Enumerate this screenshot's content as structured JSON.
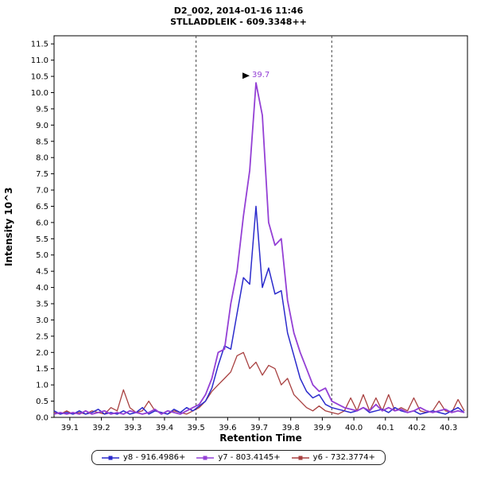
{
  "header": {
    "line1": "D2_002, 2014-01-16 11:46",
    "line2": "STLLADDLEIK - 609.3348++"
  },
  "axes": {
    "x_label": "Retention Time",
    "y_label": "Intensity 10^3"
  },
  "colors": {
    "series_y8": "#2b2bcc",
    "series_y7": "#9440d5",
    "series_y6": "#a84040",
    "boundary_line": "#444444",
    "axis": "#000000"
  },
  "chart_data": {
    "type": "line",
    "title": "D2_002, 2014-01-16 11:46",
    "subtitle": "STLLADDLEIK - 609.3348++",
    "xlabel": "Retention Time",
    "ylabel": "Intensity 10^3",
    "xlim": [
      39.05,
      40.36
    ],
    "ylim": [
      0,
      11.75
    ],
    "x_ticks": [
      39.1,
      39.2,
      39.3,
      39.4,
      39.5,
      39.6,
      39.7,
      39.8,
      39.9,
      40.0,
      40.1,
      40.2,
      40.3
    ],
    "y_tick_step": 0.5,
    "y_tick_max": 11.5,
    "grid": false,
    "legend_position": "bottom",
    "integration_boundaries": [
      39.5,
      39.93
    ],
    "peak_annotation": {
      "x": 39.69,
      "y": 10.3,
      "label": "39.7"
    },
    "draw_order": [
      2,
      0,
      1
    ],
    "x": [
      39.05,
      39.07,
      39.09,
      39.11,
      39.13,
      39.15,
      39.17,
      39.19,
      39.21,
      39.23,
      39.25,
      39.27,
      39.29,
      39.31,
      39.33,
      39.35,
      39.37,
      39.39,
      39.41,
      39.43,
      39.45,
      39.47,
      39.49,
      39.51,
      39.53,
      39.55,
      39.57,
      39.59,
      39.61,
      39.63,
      39.65,
      39.67,
      39.69,
      39.71,
      39.73,
      39.75,
      39.77,
      39.79,
      39.81,
      39.83,
      39.85,
      39.87,
      39.89,
      39.91,
      39.93,
      39.95,
      39.97,
      39.99,
      40.01,
      40.03,
      40.05,
      40.07,
      40.09,
      40.11,
      40.13,
      40.15,
      40.17,
      40.19,
      40.21,
      40.23,
      40.25,
      40.27,
      40.29,
      40.31,
      40.33,
      40.35
    ],
    "series": [
      {
        "id": "y8",
        "name": "y8 - 916.4986+",
        "color": "#2b2bcc",
        "width": 1.5,
        "values": [
          0.2,
          0.1,
          0.15,
          0.1,
          0.2,
          0.1,
          0.15,
          0.25,
          0.1,
          0.15,
          0.1,
          0.2,
          0.1,
          0.15,
          0.3,
          0.1,
          0.2,
          0.15,
          0.1,
          0.25,
          0.15,
          0.3,
          0.2,
          0.35,
          0.5,
          0.9,
          1.6,
          2.2,
          2.1,
          3.2,
          4.3,
          4.1,
          6.5,
          4.0,
          4.6,
          3.8,
          3.9,
          2.6,
          1.9,
          1.2,
          0.8,
          0.6,
          0.7,
          0.4,
          0.3,
          0.25,
          0.2,
          0.15,
          0.2,
          0.3,
          0.15,
          0.2,
          0.25,
          0.15,
          0.3,
          0.2,
          0.15,
          0.2,
          0.1,
          0.15,
          0.2,
          0.15,
          0.1,
          0.2,
          0.3,
          0.15
        ]
      },
      {
        "id": "y7",
        "name": "y7 - 803.4145+",
        "color": "#9440d5",
        "width": 1.8,
        "values": [
          0.1,
          0.15,
          0.1,
          0.15,
          0.1,
          0.2,
          0.1,
          0.15,
          0.2,
          0.1,
          0.15,
          0.1,
          0.2,
          0.15,
          0.1,
          0.15,
          0.25,
          0.1,
          0.2,
          0.15,
          0.1,
          0.2,
          0.3,
          0.4,
          0.7,
          1.2,
          2.0,
          2.1,
          3.5,
          4.5,
          6.2,
          7.6,
          10.3,
          9.3,
          6.0,
          5.3,
          5.5,
          3.6,
          2.6,
          2.0,
          1.5,
          1.0,
          0.8,
          0.9,
          0.5,
          0.4,
          0.3,
          0.25,
          0.2,
          0.3,
          0.2,
          0.4,
          0.2,
          0.3,
          0.2,
          0.25,
          0.15,
          0.2,
          0.3,
          0.2,
          0.15,
          0.2,
          0.25,
          0.15,
          0.2,
          0.15
        ]
      },
      {
        "id": "y6",
        "name": "y6 - 732.3774+",
        "color": "#a84040",
        "width": 1.3,
        "values": [
          0.15,
          0.1,
          0.2,
          0.1,
          0.15,
          0.1,
          0.2,
          0.15,
          0.1,
          0.3,
          0.2,
          0.85,
          0.3,
          0.15,
          0.2,
          0.5,
          0.2,
          0.15,
          0.1,
          0.2,
          0.15,
          0.1,
          0.2,
          0.3,
          0.5,
          0.8,
          1.0,
          1.2,
          1.4,
          1.9,
          2.0,
          1.5,
          1.7,
          1.3,
          1.6,
          1.5,
          1.0,
          1.2,
          0.7,
          0.5,
          0.3,
          0.2,
          0.35,
          0.2,
          0.15,
          0.1,
          0.2,
          0.6,
          0.2,
          0.7,
          0.2,
          0.6,
          0.2,
          0.7,
          0.2,
          0.3,
          0.2,
          0.6,
          0.2,
          0.15,
          0.2,
          0.5,
          0.2,
          0.15,
          0.55,
          0.2
        ]
      }
    ]
  },
  "legend": {
    "items": [
      {
        "label": "y8 - 916.4986+"
      },
      {
        "label": "y7 - 803.4145+"
      },
      {
        "label": "y6 - 732.3774+"
      }
    ]
  }
}
